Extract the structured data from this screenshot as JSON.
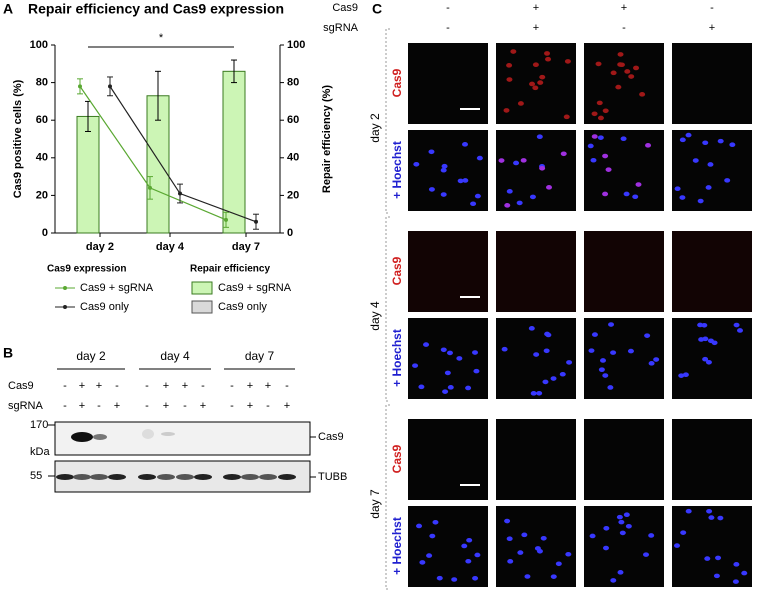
{
  "chart_data": {
    "type": "combo",
    "panel": "A",
    "title": "Repair efficiency and Cas9 expression",
    "categories": [
      "day 2",
      "day 4",
      "day 7"
    ],
    "ylabel": "Cas9 positive cells (%)",
    "y2label": "Repair efficiency (%)",
    "ylim": [
      0,
      100
    ],
    "yticks": [
      0,
      20,
      40,
      60,
      80,
      100
    ],
    "y2lim": [
      0,
      100
    ],
    "y2ticks": [
      0,
      20,
      40,
      60,
      80,
      100
    ],
    "annotation": "*",
    "legend_titles": [
      "Cas9 expression",
      "Repair efficiency"
    ],
    "series": [
      {
        "name": "Cas9 + sgRNA",
        "type": "line",
        "color": "#5aa832",
        "values": [
          78,
          24,
          7
        ],
        "errors": [
          4,
          6,
          4
        ]
      },
      {
        "name": "Cas9 only",
        "type": "line",
        "color": "#222222",
        "values": [
          78,
          21,
          6
        ],
        "errors": [
          5,
          5,
          4
        ]
      },
      {
        "name": "Cas9 + sgRNA",
        "type": "bar",
        "axis": "y2",
        "color": "#ccf5b5",
        "values": [
          62,
          73,
          86
        ],
        "errors": [
          8,
          13,
          6
        ]
      },
      {
        "name": "Cas9 only",
        "type": "bar",
        "axis": "y2",
        "color": "#d9d9d9",
        "values": [
          0,
          0,
          0
        ]
      }
    ]
  },
  "panel_b": {
    "label": "B",
    "days": [
      "day 2",
      "day 4",
      "day 7"
    ],
    "rows": [
      {
        "name": "Cas9",
        "marks": [
          "-",
          "+",
          "+",
          "-"
        ]
      },
      {
        "name": "sgRNA",
        "marks": [
          "-",
          "+",
          "-",
          "+"
        ]
      }
    ],
    "marker_170": "170",
    "unit": "kDa",
    "marker_55": "55",
    "blots": [
      "Cas9",
      "TUBB"
    ]
  },
  "panel_c": {
    "label": "C",
    "rows": [
      {
        "name": "Cas9",
        "marks": [
          "-",
          "+",
          "+",
          "-"
        ]
      },
      {
        "name": "sgRNA",
        "marks": [
          "-",
          "+",
          "-",
          "+"
        ]
      }
    ],
    "days": [
      "day 2",
      "day 4",
      "day 7"
    ],
    "channels": [
      "Cas9",
      "+ Hoechst"
    ]
  }
}
